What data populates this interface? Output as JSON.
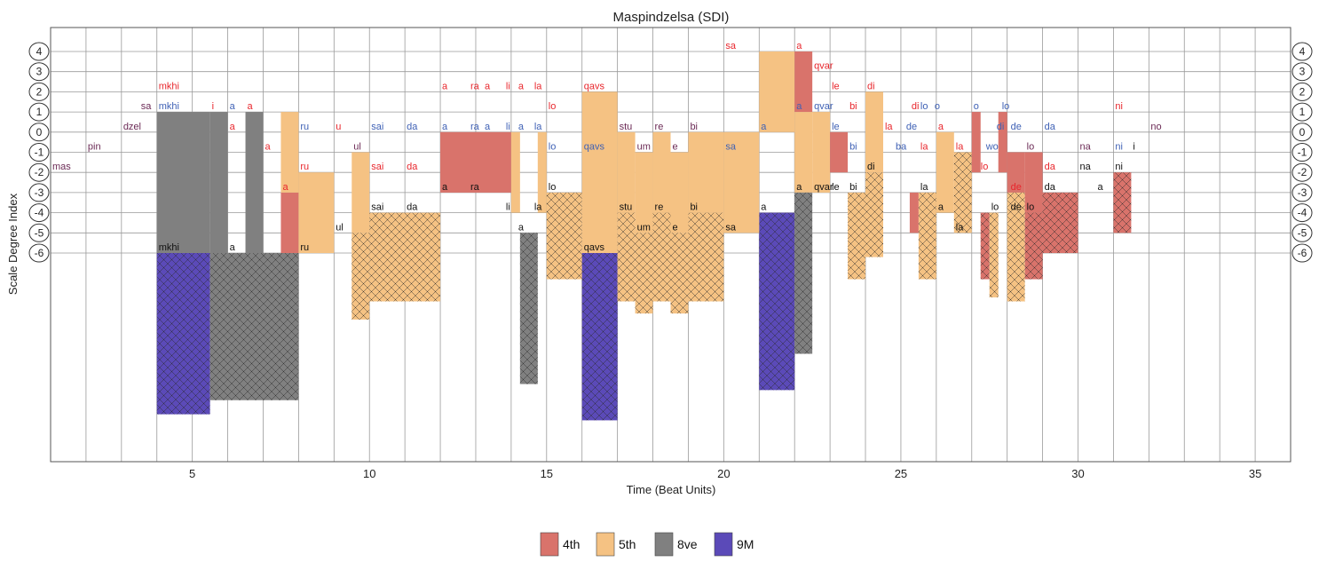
{
  "chart_data": {
    "type": "bar",
    "title": "Maspindzelsa (SDI)",
    "xlabel": "Time (Beat Units)",
    "ylabel": "Scale Degree Index",
    "xlim": [
      1,
      36
    ],
    "ylim": [
      -6,
      4
    ],
    "x_ticks": [
      5,
      10,
      15,
      20,
      25,
      30,
      35
    ],
    "y_ticks": [
      4,
      3,
      2,
      1,
      0,
      -1,
      -2,
      -3,
      -4,
      -5,
      -6
    ],
    "grid": true,
    "legend_position": "bottom-center",
    "legend": [
      {
        "name": "4th",
        "color": "#d9736b"
      },
      {
        "name": "5th",
        "color": "#f5c283"
      },
      {
        "name": "8ve",
        "color": "#808080"
      },
      {
        "name": "9M",
        "color": "#5b4ab8"
      }
    ],
    "voices": [
      {
        "name": "top",
        "color": "#e8262c"
      },
      {
        "name": "middle",
        "color": "#3f61b5"
      },
      {
        "name": "bass",
        "color": "#111111"
      }
    ],
    "intervals": [
      {
        "x0": 4,
        "x1": 5.5,
        "top": 1,
        "bottom": -6,
        "type": "8ve"
      },
      {
        "x0": 4,
        "x1": 5.5,
        "top": -6,
        "bottom": -14,
        "type": "9M",
        "hatched": true
      },
      {
        "x0": 5.5,
        "x1": 6,
        "top": 1,
        "bottom": -6,
        "type": "8ve"
      },
      {
        "x0": 6.5,
        "x1": 7,
        "top": 1,
        "bottom": -6,
        "type": "8ve"
      },
      {
        "x0": 5.5,
        "x1": 8,
        "top": -6,
        "bottom": -13.3,
        "type": "8ve",
        "hatched": true
      },
      {
        "x0": 7.5,
        "x1": 8,
        "top": -3,
        "bottom": -6,
        "type": "4th"
      },
      {
        "x0": 7.5,
        "x1": 8,
        "top": 1,
        "bottom": -3,
        "type": "5th"
      },
      {
        "x0": 8,
        "x1": 9,
        "top": -2,
        "bottom": -6,
        "type": "5th"
      },
      {
        "x0": 9.5,
        "x1": 10,
        "top": -1,
        "bottom": -5,
        "type": "5th"
      },
      {
        "x0": 9.5,
        "x1": 10,
        "top": -5,
        "bottom": -9.3,
        "type": "5th",
        "hatched": true
      },
      {
        "x0": 10,
        "x1": 12,
        "top": -4,
        "bottom": -8.4,
        "type": "5th",
        "hatched": true
      },
      {
        "x0": 12,
        "x1": 14,
        "top": 0,
        "bottom": -3,
        "type": "4th"
      },
      {
        "x0": 14,
        "x1": 14.25,
        "top": 0,
        "bottom": -4,
        "type": "5th"
      },
      {
        "x0": 14.25,
        "x1": 14.75,
        "top": -5,
        "bottom": -12.5,
        "type": "8ve",
        "hatched": true
      },
      {
        "x0": 14.75,
        "x1": 15,
        "top": 0,
        "bottom": -4,
        "type": "5th"
      },
      {
        "x0": 15,
        "x1": 16,
        "top": -3,
        "bottom": -7.3,
        "type": "5th",
        "hatched": true
      },
      {
        "x0": 16,
        "x1": 17,
        "top": 2,
        "bottom": -6,
        "type": "5th"
      },
      {
        "x0": 16,
        "x1": 17,
        "top": -6,
        "bottom": -14.3,
        "type": "9M",
        "hatched": true
      },
      {
        "x0": 17,
        "x1": 17.5,
        "top": 0,
        "bottom": -4,
        "type": "5th"
      },
      {
        "x0": 17,
        "x1": 17.5,
        "top": -4,
        "bottom": -8.4,
        "type": "5th",
        "hatched": true
      },
      {
        "x0": 17.5,
        "x1": 18,
        "top": -1,
        "bottom": -5,
        "type": "5th"
      },
      {
        "x0": 17.5,
        "x1": 18,
        "top": -5,
        "bottom": -9,
        "type": "5th",
        "hatched": true
      },
      {
        "x0": 18,
        "x1": 18.5,
        "top": 0,
        "bottom": -4,
        "type": "5th"
      },
      {
        "x0": 18,
        "x1": 18.5,
        "top": -4,
        "bottom": -8.4,
        "type": "5th",
        "hatched": true
      },
      {
        "x0": 18.5,
        "x1": 19,
        "top": -1,
        "bottom": -5,
        "type": "5th"
      },
      {
        "x0": 18.5,
        "x1": 19,
        "top": -5,
        "bottom": -9,
        "type": "5th",
        "hatched": true
      },
      {
        "x0": 19,
        "x1": 20,
        "top": 0,
        "bottom": -4,
        "type": "5th"
      },
      {
        "x0": 19,
        "x1": 20,
        "top": -4,
        "bottom": -8.4,
        "type": "5th",
        "hatched": true
      },
      {
        "x0": 21,
        "x1": 22,
        "top": 4,
        "bottom": 0,
        "type": "5th"
      },
      {
        "x0": 21,
        "x1": 22,
        "top": -4,
        "bottom": -12.8,
        "type": "9M",
        "hatched": true
      },
      {
        "x0": 22,
        "x1": 22.5,
        "top": 4,
        "bottom": 1,
        "type": "4th"
      },
      {
        "x0": 22,
        "x1": 22.5,
        "top": 1,
        "bottom": -3,
        "type": "5th"
      },
      {
        "x0": 22,
        "x1": 22.5,
        "top": -3,
        "bottom": -11,
        "type": "8ve",
        "hatched": true
      },
      {
        "x0": 22.5,
        "x1": 23,
        "top": 1,
        "bottom": -3,
        "type": "5th"
      },
      {
        "x0": 23,
        "x1": 23.5,
        "top": 0,
        "bottom": -2,
        "type": "4th"
      },
      {
        "x0": 23.5,
        "x1": 24,
        "top": -3,
        "bottom": -7.3,
        "type": "5th",
        "hatched": true
      },
      {
        "x0": 24,
        "x1": 24.5,
        "top": 2,
        "bottom": -2,
        "type": "5th"
      },
      {
        "x0": 24,
        "x1": 24.5,
        "top": -2,
        "bottom": -6.2,
        "type": "5th",
        "hatched": true
      },
      {
        "x0": 25.25,
        "x1": 25.5,
        "top": -3,
        "bottom": -5,
        "type": "4th"
      },
      {
        "x0": 25.5,
        "x1": 26,
        "top": -3,
        "bottom": -7.3,
        "type": "5th",
        "hatched": true
      },
      {
        "x0": 26,
        "x1": 26.5,
        "top": 0,
        "bottom": -4,
        "type": "5th"
      },
      {
        "x0": 26.5,
        "x1": 27,
        "top": -1,
        "bottom": -5,
        "type": "5th",
        "hatched": true
      },
      {
        "x0": 27,
        "x1": 27.25,
        "top": 1,
        "bottom": -2,
        "type": "4th"
      },
      {
        "x0": 27.25,
        "x1": 27.5,
        "top": -4,
        "bottom": -7.3,
        "type": "4th",
        "hatched": true
      },
      {
        "x0": 27.5,
        "x1": 27.75,
        "top": -4,
        "bottom": -8.2,
        "type": "5th",
        "hatched": true
      },
      {
        "x0": 27.75,
        "x1": 28,
        "top": 1,
        "bottom": -2,
        "type": "4th"
      },
      {
        "x0": 28,
        "x1": 28.5,
        "top": -1,
        "bottom": -3,
        "type": "4th"
      },
      {
        "x0": 28,
        "x1": 28.5,
        "top": -3,
        "bottom": -8.4,
        "type": "5th",
        "hatched": true
      },
      {
        "x0": 28.5,
        "x1": 29,
        "top": -1,
        "bottom": -4,
        "type": "4th"
      },
      {
        "x0": 28.5,
        "x1": 29,
        "top": -4,
        "bottom": -7.3,
        "type": "4th",
        "hatched": true
      },
      {
        "x0": 29,
        "x1": 30,
        "top": -3,
        "bottom": -6,
        "type": "4th",
        "hatched": true
      },
      {
        "x0": 31,
        "x1": 31.5,
        "top": -2,
        "bottom": -5,
        "type": "4th",
        "hatched": true
      },
      {
        "x0": 20,
        "x1": 21,
        "top": 0,
        "bottom": -5,
        "type": "5th"
      }
    ],
    "syllables": [
      {
        "x": 1.05,
        "y": -2,
        "text": "mas",
        "voice": "all"
      },
      {
        "x": 2.05,
        "y": -1,
        "text": "pin",
        "voice": "all"
      },
      {
        "x": 3.05,
        "y": 0,
        "text": "dzel",
        "voice": "all"
      },
      {
        "x": 3.55,
        "y": 1,
        "text": "sa",
        "voice": "all"
      },
      {
        "x": 4.05,
        "y": 2,
        "text": "mkhi",
        "voice": "top"
      },
      {
        "x": 4.05,
        "y": 1,
        "text": "mkhi",
        "voice": "middle"
      },
      {
        "x": 4.05,
        "y": -6,
        "text": "mkhi",
        "voice": "bass"
      },
      {
        "x": 5.55,
        "y": 1,
        "text": "i",
        "voice": "top"
      },
      {
        "x": 6.05,
        "y": 0,
        "text": "a",
        "voice": "top"
      },
      {
        "x": 6.05,
        "y": 1,
        "text": "a",
        "voice": "middle"
      },
      {
        "x": 6.05,
        "y": -6,
        "text": "a",
        "voice": "bass"
      },
      {
        "x": 6.55,
        "y": 1,
        "text": "a",
        "voice": "top"
      },
      {
        "x": 7.05,
        "y": -1,
        "text": "a",
        "voice": "top"
      },
      {
        "x": 7.55,
        "y": -3,
        "text": "a",
        "voice": "top"
      },
      {
        "x": 8.05,
        "y": 0,
        "text": "ru",
        "voice": "middle"
      },
      {
        "x": 8.05,
        "y": -2,
        "text": "ru",
        "voice": "top"
      },
      {
        "x": 8.05,
        "y": -6,
        "text": "ru",
        "voice": "bass"
      },
      {
        "x": 9.05,
        "y": 0,
        "text": "u",
        "voice": "top"
      },
      {
        "x": 9.05,
        "y": -5,
        "text": "ul",
        "voice": "bass"
      },
      {
        "x": 9.55,
        "y": -1,
        "text": "ul",
        "voice": "all"
      },
      {
        "x": 10.05,
        "y": 0,
        "text": "sai",
        "voice": "middle"
      },
      {
        "x": 10.05,
        "y": -2,
        "text": "sai",
        "voice": "top"
      },
      {
        "x": 10.05,
        "y": -4,
        "text": "sai",
        "voice": "bass"
      },
      {
        "x": 11.05,
        "y": 0,
        "text": "da",
        "voice": "middle"
      },
      {
        "x": 11.05,
        "y": -2,
        "text": "da",
        "voice": "top"
      },
      {
        "x": 11.05,
        "y": -4,
        "text": "da",
        "voice": "bass"
      },
      {
        "x": 12.05,
        "y": 2,
        "text": "a",
        "voice": "top"
      },
      {
        "x": 12.05,
        "y": 0,
        "text": "a",
        "voice": "middle"
      },
      {
        "x": 12.05,
        "y": -3,
        "text": "a",
        "voice": "bass"
      },
      {
        "x": 12.85,
        "y": 2,
        "text": "ra",
        "voice": "top"
      },
      {
        "x": 12.85,
        "y": 0,
        "text": "ra",
        "voice": "middle"
      },
      {
        "x": 12.85,
        "y": -3,
        "text": "ra",
        "voice": "bass"
      },
      {
        "x": 13.25,
        "y": 2,
        "text": "a",
        "voice": "top"
      },
      {
        "x": 13.25,
        "y": 0,
        "text": "a",
        "voice": "middle"
      },
      {
        "x": 13.85,
        "y": 2,
        "text": "li",
        "voice": "top"
      },
      {
        "x": 13.85,
        "y": 0,
        "text": "li",
        "voice": "middle"
      },
      {
        "x": 13.85,
        "y": -4,
        "text": "li",
        "voice": "bass"
      },
      {
        "x": 14.2,
        "y": 2,
        "text": "a",
        "voice": "top"
      },
      {
        "x": 14.2,
        "y": 0,
        "text": "a",
        "voice": "middle"
      },
      {
        "x": 14.2,
        "y": -5,
        "text": "a",
        "voice": "bass"
      },
      {
        "x": 14.65,
        "y": 2,
        "text": "la",
        "voice": "top"
      },
      {
        "x": 14.65,
        "y": 0,
        "text": "la",
        "voice": "middle"
      },
      {
        "x": 14.65,
        "y": -4,
        "text": "la",
        "voice": "bass"
      },
      {
        "x": 15.05,
        "y": 1,
        "text": "lo",
        "voice": "top"
      },
      {
        "x": 15.05,
        "y": -1,
        "text": "lo",
        "voice": "middle"
      },
      {
        "x": 15.05,
        "y": -3,
        "text": "lo",
        "voice": "bass"
      },
      {
        "x": 16.05,
        "y": 2,
        "text": "qavs",
        "voice": "top"
      },
      {
        "x": 16.05,
        "y": -1,
        "text": "qavs",
        "voice": "middle"
      },
      {
        "x": 16.05,
        "y": -6,
        "text": "qavs",
        "voice": "bass"
      },
      {
        "x": 17.05,
        "y": 0,
        "text": "stu",
        "voice": "all"
      },
      {
        "x": 17.05,
        "y": -4,
        "text": "stu",
        "voice": "bass"
      },
      {
        "x": 17.55,
        "y": -1,
        "text": "um",
        "voice": "all"
      },
      {
        "x": 17.55,
        "y": -5,
        "text": "um",
        "voice": "bass"
      },
      {
        "x": 18.05,
        "y": 0,
        "text": "re",
        "voice": "all"
      },
      {
        "x": 18.05,
        "y": -4,
        "text": "re",
        "voice": "bass"
      },
      {
        "x": 18.55,
        "y": -1,
        "text": "e",
        "voice": "all"
      },
      {
        "x": 18.55,
        "y": -5,
        "text": "e",
        "voice": "bass"
      },
      {
        "x": 19.05,
        "y": 0,
        "text": "bi",
        "voice": "all"
      },
      {
        "x": 19.05,
        "y": -4,
        "text": "bi",
        "voice": "bass"
      },
      {
        "x": 20.05,
        "y": 4,
        "text": "sa",
        "voice": "top"
      },
      {
        "x": 20.05,
        "y": -1,
        "text": "sa",
        "voice": "middle"
      },
      {
        "x": 20.05,
        "y": -5,
        "text": "sa",
        "voice": "bass"
      },
      {
        "x": 21.05,
        "y": 0,
        "text": "a",
        "voice": "middle"
      },
      {
        "x": 21.05,
        "y": -4,
        "text": "a",
        "voice": "bass"
      },
      {
        "x": 22.05,
        "y": 4,
        "text": "a",
        "voice": "top"
      },
      {
        "x": 22.05,
        "y": 1,
        "text": "a",
        "voice": "middle"
      },
      {
        "x": 22.05,
        "y": -3,
        "text": "a",
        "voice": "bass"
      },
      {
        "x": 22.55,
        "y": 3,
        "text": "qvar",
        "voice": "top"
      },
      {
        "x": 22.55,
        "y": 1,
        "text": "qvar",
        "voice": "middle"
      },
      {
        "x": 22.55,
        "y": -3,
        "text": "qvar",
        "voice": "bass"
      },
      {
        "x": 23.05,
        "y": 2,
        "text": "le",
        "voice": "top"
      },
      {
        "x": 23.05,
        "y": 0,
        "text": "le",
        "voice": "middle"
      },
      {
        "x": 23.05,
        "y": -3,
        "text": "le",
        "voice": "bass"
      },
      {
        "x": 23.55,
        "y": 1,
        "text": "bi",
        "voice": "top"
      },
      {
        "x": 23.55,
        "y": -1,
        "text": "bi",
        "voice": "middle"
      },
      {
        "x": 23.55,
        "y": -3,
        "text": "bi",
        "voice": "bass"
      },
      {
        "x": 24.05,
        "y": 2,
        "text": "di",
        "voice": "top"
      },
      {
        "x": 24.05,
        "y": -2,
        "text": "di",
        "voice": "bass"
      },
      {
        "x": 24.55,
        "y": 0,
        "text": "la",
        "voice": "top"
      },
      {
        "x": 24.85,
        "y": -1,
        "text": "ba",
        "voice": "middle"
      },
      {
        "x": 25.15,
        "y": 0,
        "text": "de",
        "voice": "middle"
      },
      {
        "x": 25.3,
        "y": 1,
        "text": "di",
        "voice": "top"
      },
      {
        "x": 25.55,
        "y": 1,
        "text": "lo",
        "voice": "middle"
      },
      {
        "x": 25.55,
        "y": -1,
        "text": "la",
        "voice": "top"
      },
      {
        "x": 25.55,
        "y": -3,
        "text": "la",
        "voice": "bass"
      },
      {
        "x": 25.95,
        "y": 1,
        "text": "o",
        "voice": "middle"
      },
      {
        "x": 26.05,
        "y": 0,
        "text": "a",
        "voice": "top"
      },
      {
        "x": 26.05,
        "y": -4,
        "text": "a",
        "voice": "bass"
      },
      {
        "x": 26.55,
        "y": -1,
        "text": "la",
        "voice": "top"
      },
      {
        "x": 26.55,
        "y": -5,
        "text": "la",
        "voice": "bass"
      },
      {
        "x": 27.05,
        "y": 1,
        "text": "o",
        "voice": "middle"
      },
      {
        "x": 27.25,
        "y": -2,
        "text": "lo",
        "voice": "top"
      },
      {
        "x": 27.4,
        "y": -1,
        "text": "wo",
        "voice": "middle"
      },
      {
        "x": 27.55,
        "y": -4,
        "text": "lo",
        "voice": "bass"
      },
      {
        "x": 27.7,
        "y": 0,
        "text": "di",
        "voice": "middle"
      },
      {
        "x": 27.85,
        "y": 1,
        "text": "lo",
        "voice": "middle"
      },
      {
        "x": 28.1,
        "y": 0,
        "text": "de",
        "voice": "middle"
      },
      {
        "x": 28.1,
        "y": -3,
        "text": "de",
        "voice": "top"
      },
      {
        "x": 28.1,
        "y": -4,
        "text": "de",
        "voice": "bass"
      },
      {
        "x": 28.55,
        "y": -1,
        "text": "lo",
        "voice": "all"
      },
      {
        "x": 28.55,
        "y": -4,
        "text": "lo",
        "voice": "bass"
      },
      {
        "x": 29.05,
        "y": 0,
        "text": "da",
        "voice": "middle"
      },
      {
        "x": 29.05,
        "y": -2,
        "text": "da",
        "voice": "top"
      },
      {
        "x": 29.05,
        "y": -3,
        "text": "da",
        "voice": "bass"
      },
      {
        "x": 30.05,
        "y": -1,
        "text": "na",
        "voice": "all"
      },
      {
        "x": 30.05,
        "y": -2,
        "text": "na",
        "voice": "bass"
      },
      {
        "x": 30.55,
        "y": -3,
        "text": "a",
        "voice": "bass"
      },
      {
        "x": 31.05,
        "y": 1,
        "text": "ni",
        "voice": "top"
      },
      {
        "x": 31.05,
        "y": -1,
        "text": "ni",
        "voice": "middle"
      },
      {
        "x": 31.05,
        "y": -2,
        "text": "ni",
        "voice": "bass"
      },
      {
        "x": 31.55,
        "y": -1,
        "text": "i",
        "voice": "bass"
      },
      {
        "x": 32.05,
        "y": 0,
        "text": "no",
        "voice": "all"
      }
    ]
  }
}
